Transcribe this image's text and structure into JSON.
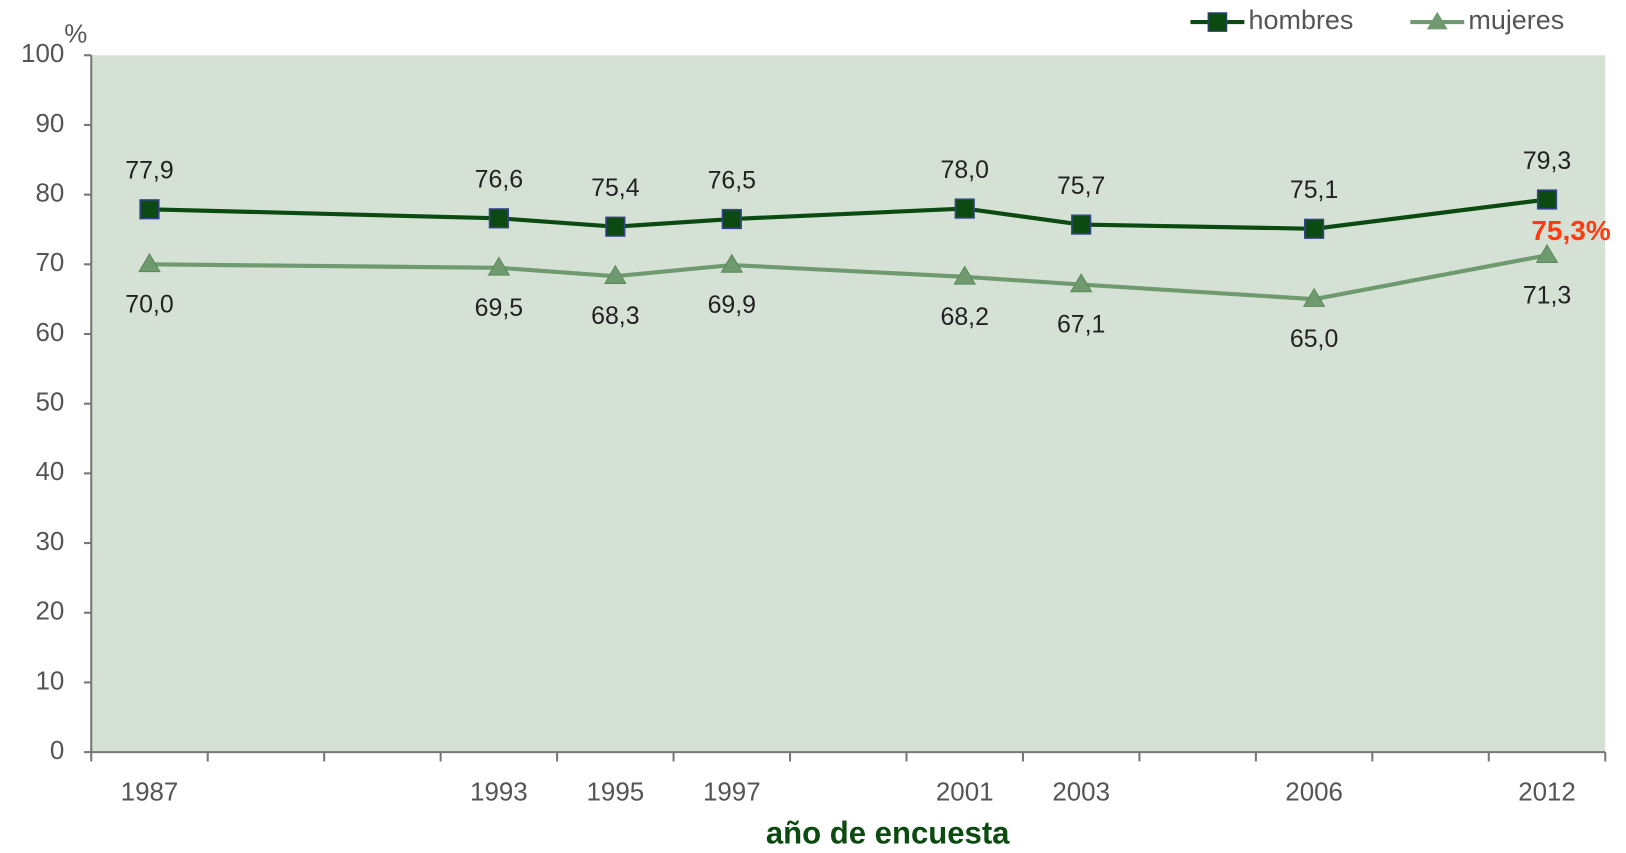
{
  "chart_data": {
    "type": "line",
    "x_label": "año de encuesta",
    "y_label": "%",
    "categories": [
      "1987",
      null,
      null,
      "1993",
      "1995",
      "1997",
      null,
      "2001",
      "2003",
      null,
      "2006",
      null,
      "2012"
    ],
    "series": [
      {
        "name": "hombres",
        "color": "#0b4a10",
        "marker": "square",
        "values": [
          77.9,
          null,
          null,
          76.6,
          75.4,
          76.5,
          null,
          78.0,
          75.7,
          null,
          75.1,
          null,
          79.3
        ],
        "value_labels": [
          "77,9",
          null,
          null,
          "76,6",
          "75,4",
          "76,5",
          null,
          "78,0",
          "75,7",
          null,
          "75,1",
          null,
          "79,3"
        ]
      },
      {
        "name": "mujeres",
        "color": "#6f9a6f",
        "marker": "triangle",
        "values": [
          70.0,
          null,
          null,
          69.5,
          68.3,
          69.9,
          null,
          68.2,
          67.1,
          null,
          65.0,
          null,
          71.3
        ],
        "value_labels": [
          "70,0",
          null,
          null,
          "69,5",
          "68,3",
          "69,9",
          null,
          "68,2",
          "67,1",
          null,
          "65,0",
          null,
          "71,3"
        ]
      }
    ],
    "annotations": [
      {
        "text": "75,3%",
        "color": "#ff3b0f"
      }
    ],
    "ylim": [
      0,
      100
    ],
    "yticks": [
      0,
      10,
      20,
      30,
      40,
      50,
      60,
      70,
      80,
      90,
      100
    ],
    "legend": "top-right"
  }
}
